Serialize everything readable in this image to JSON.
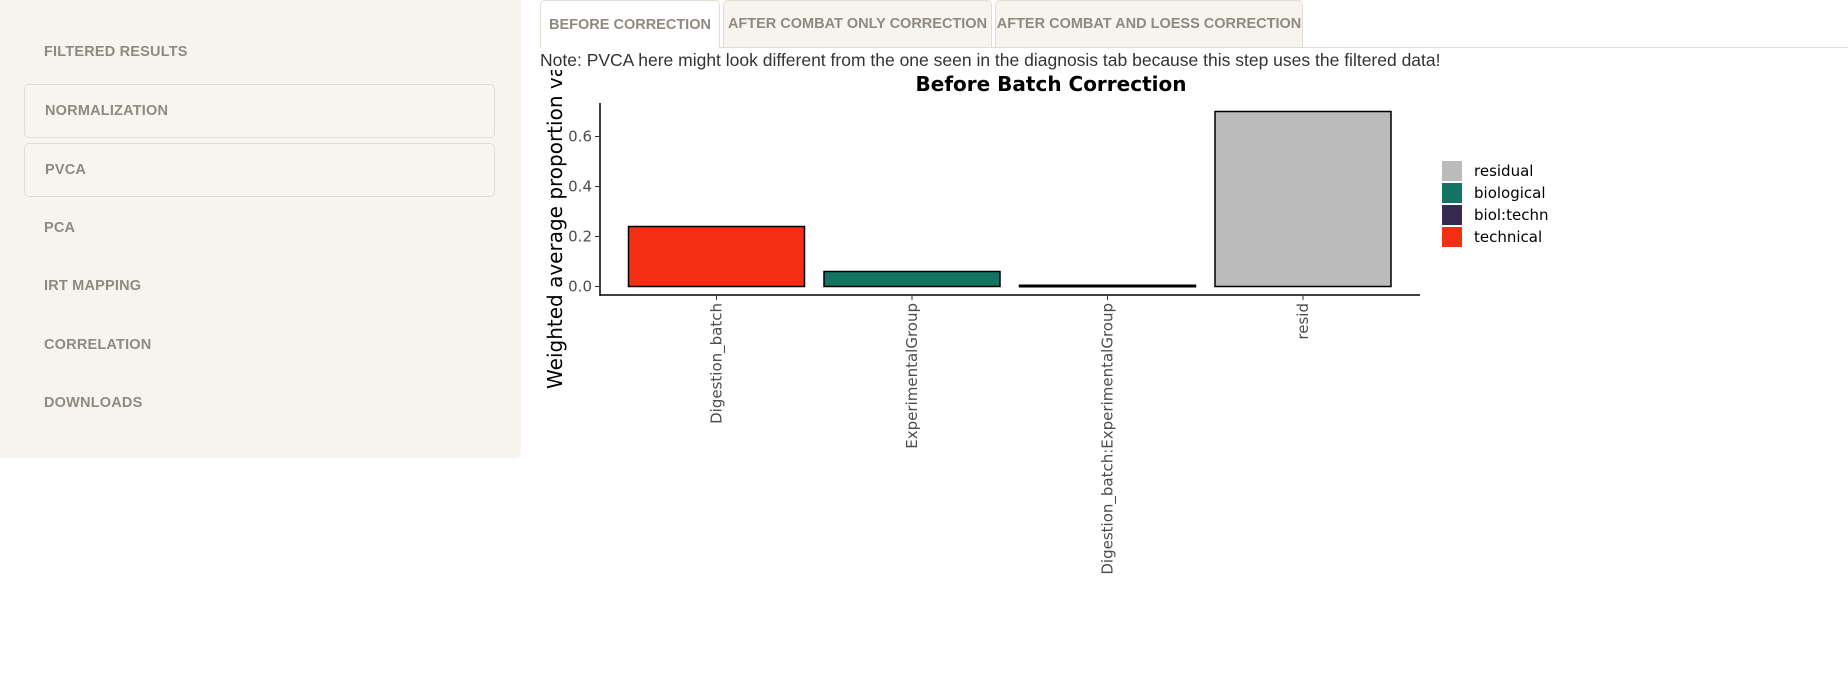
{
  "sidebar": {
    "items": [
      {
        "label": "FILTERED RESULTS",
        "boxed": false
      },
      {
        "label": "NORMALIZATION",
        "boxed": true
      },
      {
        "label": "PVCA",
        "boxed": true
      },
      {
        "label": "PCA",
        "boxed": false
      },
      {
        "label": "IRT MAPPING",
        "boxed": false
      },
      {
        "label": "CORRELATION",
        "boxed": false
      },
      {
        "label": "DOWNLOADS",
        "boxed": false
      }
    ]
  },
  "tabs": [
    {
      "label": "BEFORE CORRECTION",
      "active": true
    },
    {
      "label": "AFTER COMBAT ONLY CORRECTION",
      "active": false
    },
    {
      "label": "AFTER COMBAT AND LOESS CORRECTION",
      "active": false
    }
  ],
  "note": "Note: PVCA here might look different from the one seen in the diagnosis tab because this step uses the filtered data!",
  "chart_data": {
    "type": "bar",
    "title": "Before Batch Correction",
    "ylabel": "Weighted average proportion va",
    "xlabel": "",
    "ylim": [
      0,
      0.73
    ],
    "yticks": [
      "0.0",
      "0.2",
      "0.4",
      "0.6"
    ],
    "categories": [
      "Digestion_batch",
      "ExperimentalGroup",
      "Digestion_batch:ExperimentalGroup",
      "resid"
    ],
    "values": [
      0.24,
      0.06,
      0.005,
      0.7
    ],
    "bar_groups": [
      "technical",
      "biological",
      "biol:techn",
      "residual"
    ],
    "legend": [
      {
        "label": "residual",
        "color": "#bbbbbb"
      },
      {
        "label": "biological",
        "color": "#137561"
      },
      {
        "label": "biol:techn",
        "color": "#372a4f"
      },
      {
        "label": "technical",
        "color": "#f32e12"
      }
    ],
    "legend_position": "right",
    "grid": false
  }
}
